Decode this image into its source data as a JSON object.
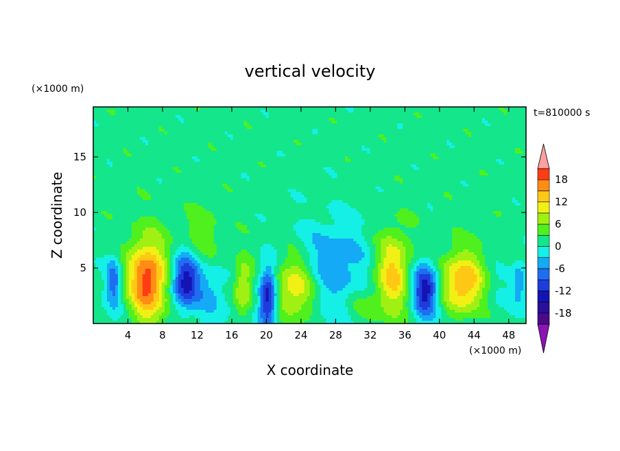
{
  "chart_data": {
    "type": "heatmap",
    "title": "vertical velocity",
    "xlabel": "X coordinate",
    "ylabel": "Z coordinate",
    "x_unit": "(×1000 m)",
    "y_unit": "(×1000 m)",
    "time_label": "t=810000 s",
    "xlim": [
      0,
      50
    ],
    "ylim": [
      0,
      19.5
    ],
    "x_ticks": [
      4,
      8,
      12,
      16,
      20,
      24,
      28,
      32,
      36,
      40,
      44,
      48
    ],
    "y_ticks": [
      5,
      10,
      15
    ],
    "colorbar": {
      "ticks": [
        18,
        12,
        6,
        0,
        -6,
        -12,
        -18
      ],
      "min": -21,
      "max": 21,
      "extend": "both",
      "levels": [
        {
          "from": -21,
          "to": -18,
          "color": "#4a0a8a"
        },
        {
          "from": -18,
          "to": -15,
          "color": "#2a0f9a"
        },
        {
          "from": -15,
          "to": -12,
          "color": "#1414b4"
        },
        {
          "from": -12,
          "to": -9,
          "color": "#1e3cdc"
        },
        {
          "from": -9,
          "to": -6,
          "color": "#1e6ef0"
        },
        {
          "from": -6,
          "to": -3,
          "color": "#14aaf5"
        },
        {
          "from": -3,
          "to": 0,
          "color": "#14f0e6"
        },
        {
          "from": 0,
          "to": 3,
          "color": "#14e68c"
        },
        {
          "from": 3,
          "to": 6,
          "color": "#50f01e"
        },
        {
          "from": 6,
          "to": 9,
          "color": "#a0f014"
        },
        {
          "from": 9,
          "to": 12,
          "color": "#f0f014"
        },
        {
          "from": 12,
          "to": 15,
          "color": "#ffc814"
        },
        {
          "from": 15,
          "to": 18,
          "color": "#ff8c14"
        },
        {
          "from": 18,
          "to": 21,
          "color": "#ff3c14"
        }
      ],
      "under_color": "#8c14b4",
      "over_color": "#ffa0a0"
    },
    "background_value": 1.5,
    "features": [
      {
        "x": 2.4,
        "z": 3.8,
        "value": -9,
        "sx": 0.6,
        "sz": 1.5
      },
      {
        "x": 6.2,
        "z": 3.8,
        "value": 19,
        "sx": 1.6,
        "sz": 2.6
      },
      {
        "x": 10.6,
        "z": 3.8,
        "value": -16,
        "sx": 1.1,
        "sz": 1.7
      },
      {
        "x": 13.4,
        "z": 2.8,
        "value": -4,
        "sx": 1.2,
        "sz": 1.6
      },
      {
        "x": 17.3,
        "z": 3.2,
        "value": 9,
        "sx": 0.8,
        "sz": 2.0
      },
      {
        "x": 20.2,
        "z": 2.3,
        "value": -16,
        "sx": 0.7,
        "sz": 2.0
      },
      {
        "x": 23.4,
        "z": 3.3,
        "value": 11,
        "sx": 1.7,
        "sz": 2.0
      },
      {
        "x": 27.6,
        "z": 5.6,
        "value": -6,
        "sx": 3.2,
        "sz": 2.8
      },
      {
        "x": 34.6,
        "z": 4.5,
        "value": 12,
        "sx": 1.4,
        "sz": 2.6
      },
      {
        "x": 38.4,
        "z": 3.1,
        "value": -16,
        "sx": 1.1,
        "sz": 1.6
      },
      {
        "x": 42.7,
        "z": 3.6,
        "value": 15,
        "sx": 1.9,
        "sz": 2.0
      },
      {
        "x": 46.2,
        "z": 3.2,
        "value": -3,
        "sx": 1.4,
        "sz": 1.8
      },
      {
        "x": 49.2,
        "z": 3.6,
        "value": -7,
        "sx": 0.6,
        "sz": 1.4
      },
      {
        "x": 12.6,
        "z": 8.0,
        "value": 4,
        "sx": 1.4,
        "sz": 1.6
      },
      {
        "x": 31.0,
        "z": 1.5,
        "value": 4,
        "sx": 1.5,
        "sz": 1.2
      }
    ]
  }
}
